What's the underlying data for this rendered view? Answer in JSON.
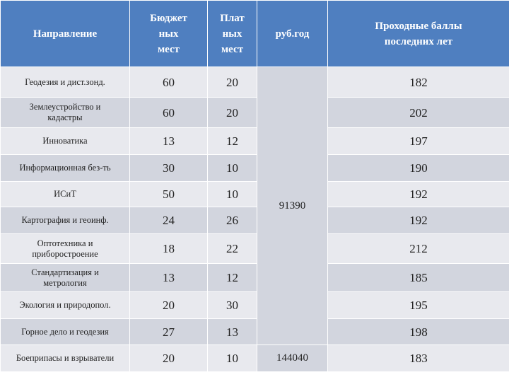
{
  "table": {
    "header": [
      "Направление",
      "Бюджет\nных\nмест",
      "Плат\nных\nмест",
      "руб.год",
      "Проходные баллы\nпоследних лет"
    ],
    "rows": [
      [
        "Геодезия и дист.зонд.",
        60,
        20,
        182
      ],
      [
        "Землеустройство и\nкадастры",
        60,
        20,
        202
      ],
      [
        "Инноватика",
        13,
        12,
        197
      ],
      [
        "Информационная без-ть",
        30,
        10,
        190
      ],
      [
        "ИСиТ",
        50,
        10,
        192
      ],
      [
        "Картография и геоинф.",
        24,
        26,
        192
      ],
      [
        "Оптотехника и\nприборостроение",
        18,
        22,
        212
      ],
      [
        "Стандартизация и\nметрология",
        13,
        12,
        185
      ],
      [
        "Экология и природопол.",
        20,
        30,
        195
      ],
      [
        "Горное дело и геодезия",
        27,
        13,
        198
      ],
      [
        "Боеприпасы и взрыватели",
        20,
        10,
        183
      ]
    ],
    "fees": [
      91390,
      144040
    ]
  }
}
